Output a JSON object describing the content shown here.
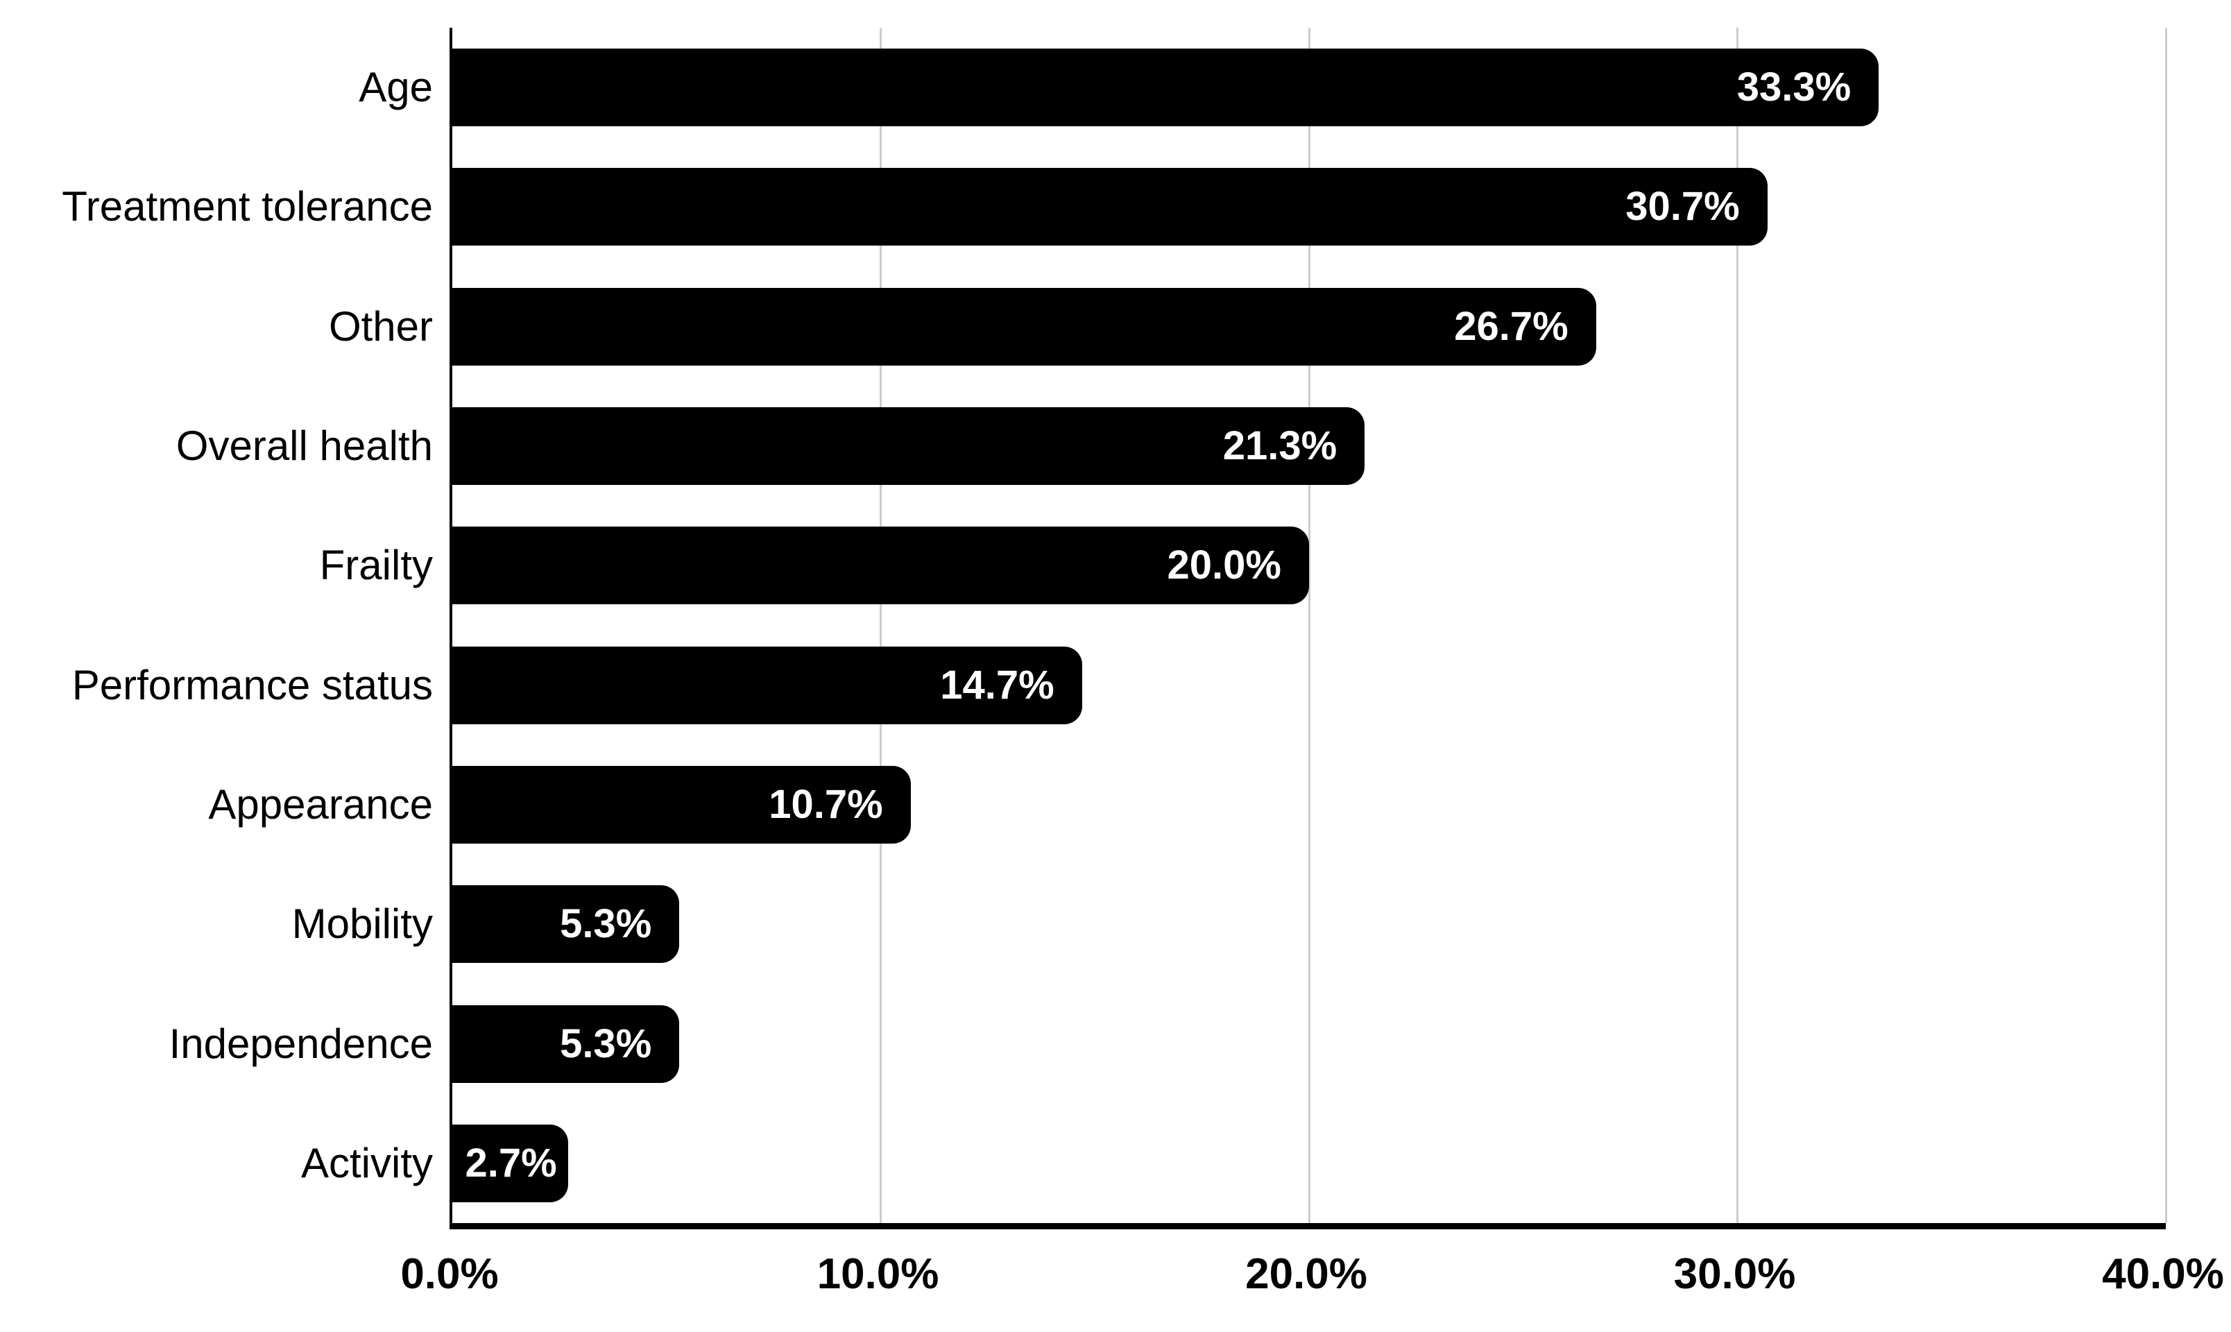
{
  "chart_data": {
    "type": "bar",
    "orientation": "horizontal",
    "title": "",
    "categories": [
      "Age",
      "Treatment tolerance",
      "Other",
      "Overall health",
      "Frailty",
      "Performance status",
      "Appearance",
      "Mobility",
      "Independence",
      "Activity"
    ],
    "values": [
      33.3,
      30.7,
      26.7,
      21.3,
      20.0,
      14.7,
      10.7,
      5.3,
      5.3,
      2.7
    ],
    "value_labels": [
      "33.3%",
      "30.7%",
      "26.7%",
      "21.3%",
      "20.0%",
      "14.7%",
      "10.7%",
      "5.3%",
      "5.3%",
      "2.7%"
    ],
    "xlabel": "",
    "ylabel": "",
    "xlim": [
      0,
      40
    ],
    "x_ticks": [
      0,
      10,
      20,
      30,
      40
    ],
    "x_tick_labels": [
      "0.0%",
      "10.0%",
      "20.0%",
      "30.0%",
      "40.0%"
    ],
    "grid": "vertical-gridlines-at-ticks",
    "legend": "none",
    "colors": {
      "bar": "#000000",
      "value_label": "#ffffff",
      "gridline": "#cccccc",
      "axis": "#000000",
      "category_label": "#000000",
      "tick_label": "#000000",
      "background": "#ffffff"
    }
  }
}
